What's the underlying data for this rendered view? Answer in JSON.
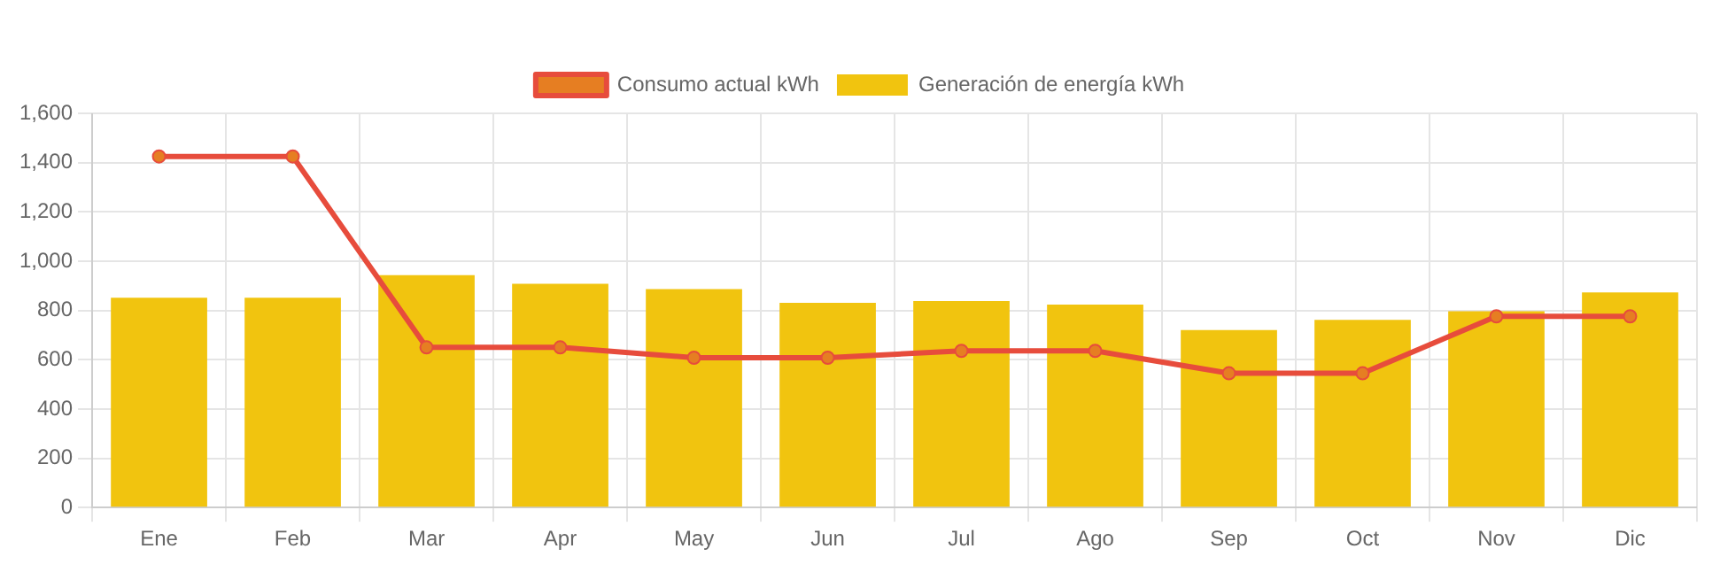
{
  "chart_data": {
    "type": "bar",
    "categories": [
      "Ene",
      "Feb",
      "Mar",
      "Apr",
      "May",
      "Jun",
      "Jul",
      "Ago",
      "Sep",
      "Oct",
      "Nov",
      "Dic"
    ],
    "series": [
      {
        "name": "Consumo actual kWh",
        "type": "line",
        "color": "#e74c3c",
        "marker": "circle",
        "values": [
          1425,
          1425,
          650,
          650,
          608,
          608,
          636,
          636,
          545,
          545,
          776,
          776
        ]
      },
      {
        "name": "Generación de energía kWh",
        "color": "#f1c40f",
        "values": [
          852,
          852,
          943,
          908,
          887,
          831,
          838,
          824,
          720,
          762,
          797,
          873
        ]
      }
    ],
    "ylim": [
      0,
      1600
    ],
    "yticks": [
      0,
      200,
      400,
      600,
      800,
      {
        "value": 1000,
        "label": "1,000"
      },
      {
        "value": 1200,
        "label": "1,200"
      },
      {
        "value": 1400,
        "label": "1,400"
      },
      {
        "value": 1600,
        "label": "1,600"
      }
    ],
    "grid": true,
    "legend": "top"
  }
}
